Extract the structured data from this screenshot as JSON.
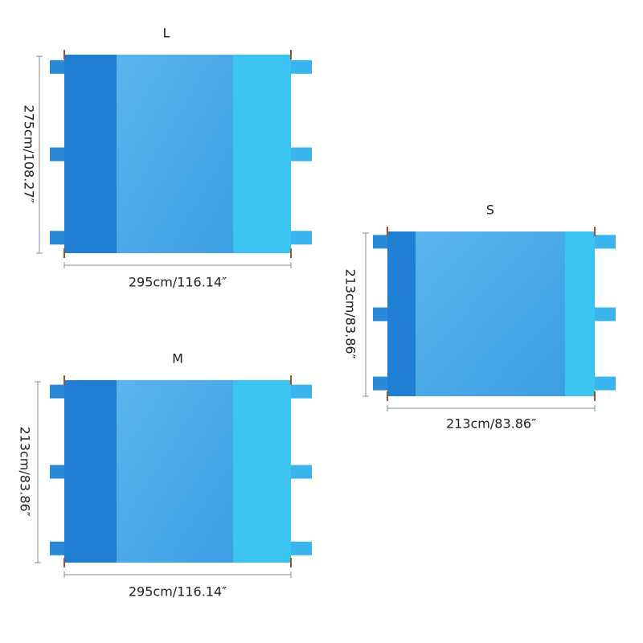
{
  "mats": [
    {
      "size": "L",
      "width": "295cm/116.14″",
      "height": "275cm/108.27″"
    },
    {
      "size": "S",
      "width": "213cm/83.86″",
      "height": "213cm/83.86″"
    },
    {
      "size": "M",
      "width": "295cm/116.14″",
      "height": "213cm/83.86″"
    }
  ]
}
